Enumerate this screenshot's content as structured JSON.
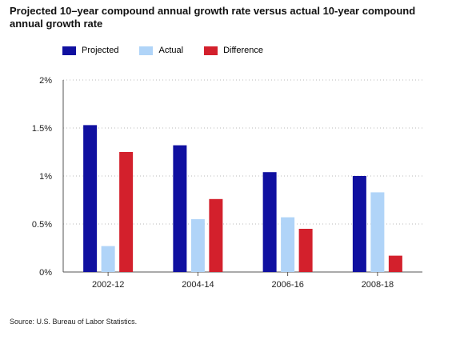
{
  "title": "Projected 10–year compound annual growth rate versus actual 10-year compound annual growth rate",
  "source": "Source: U.S. Bureau of Labor Statistics.",
  "chart_data": {
    "type": "bar",
    "title": "Projected 10–year compound annual growth rate versus actual 10-year compound annual growth rate",
    "xlabel": "",
    "ylabel": "",
    "categories": [
      "2002-12",
      "2004-14",
      "2006-16",
      "2008-18"
    ],
    "series": [
      {
        "name": "Projected",
        "color": "#1010a0",
        "values": [
          1.53,
          1.32,
          1.04,
          1.0
        ]
      },
      {
        "name": "Actual",
        "color": "#b0d4f8",
        "values": [
          0.27,
          0.55,
          0.57,
          0.83
        ]
      },
      {
        "name": "Difference",
        "color": "#d3202c",
        "values": [
          1.25,
          0.76,
          0.45,
          0.17
        ]
      }
    ],
    "ylim": [
      0,
      2
    ],
    "yticks": [
      0,
      0.5,
      1,
      1.5,
      2
    ],
    "ytick_labels": [
      "0%",
      "0.5%",
      "1%",
      "1.5%",
      "2%"
    ],
    "grid": "horizontal dotted",
    "legend_position": "top-left"
  }
}
